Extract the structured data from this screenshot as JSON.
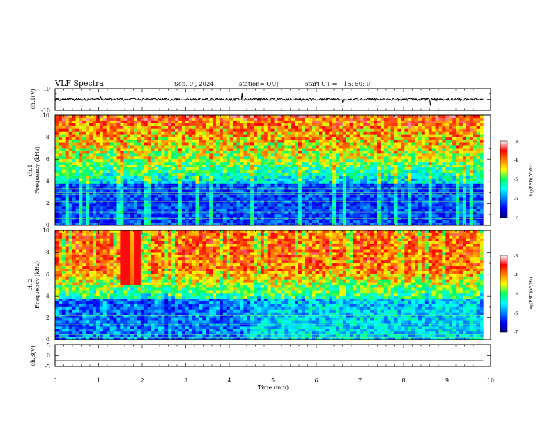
{
  "header": {
    "title": "VLF Spectra",
    "date": "Sep. 9 , 2024",
    "station": "station= OUJ",
    "start_ut": "start UT =",
    "start_time": "15: 50: 0"
  },
  "chart_data": [
    {
      "type": "line",
      "panel": "ch1-waveform",
      "ylabel": "ch.1(V)",
      "ylim": [
        -10,
        10
      ],
      "ytick_labels": [
        "10",
        "-10"
      ],
      "xlim": [
        0,
        10
      ],
      "baseline": 0,
      "trace_end": 9.83
    },
    {
      "type": "heatmap",
      "panel": "ch1-spectrogram",
      "ylabel_line1": "ch.1",
      "ylabel_line2": "Frequency (kHz)",
      "ylim": [
        0,
        10
      ],
      "ytick_labels": [
        "0",
        "2",
        "4",
        "6",
        "8",
        "10"
      ],
      "xlim": [
        0,
        10
      ],
      "data_end": 9.83,
      "colorbar": {
        "range": [
          -7,
          -3
        ],
        "tick_labels": [
          "-3",
          "-4",
          "-5",
          "-6",
          "-7"
        ],
        "label": "log(PSD)(V²/Hz)"
      }
    },
    {
      "type": "heatmap",
      "panel": "ch2-spectrogram",
      "ylabel_line1": "ch.2",
      "ylabel_line2": "Frequency (kHz)",
      "ylim": [
        0,
        10
      ],
      "ytick_labels": [
        "0",
        "2",
        "4",
        "6",
        "8",
        "10"
      ],
      "xlim": [
        0,
        10
      ],
      "data_end": 9.83,
      "colorbar": {
        "range": [
          -7,
          -3
        ],
        "tick_labels": [
          "-3",
          "-4",
          "-5",
          "-6",
          "-7"
        ],
        "label": "log(PSD)(V²/Hz)"
      }
    },
    {
      "type": "line",
      "panel": "ch3-waveform",
      "ylabel": "ch.3(V)",
      "ylim": [
        -5,
        5
      ],
      "ytick_labels": [
        "5",
        "0",
        "-5"
      ],
      "xlim": [
        0,
        10
      ],
      "values": [
        -2.5,
        -2.5
      ],
      "x": [
        0,
        9.83
      ],
      "xlabel": "Time (min)",
      "xtick_labels": [
        "0",
        "1",
        "2",
        "3",
        "4",
        "5",
        "6",
        "7",
        "8",
        "9",
        "10"
      ]
    }
  ]
}
